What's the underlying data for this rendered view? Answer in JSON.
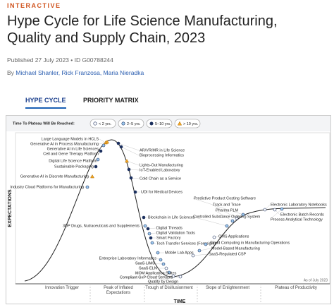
{
  "header": {
    "label": "INTERACTIVE",
    "title": "Hype Cycle for Life Science Manufacturing, Quality and Supply Chain, 2023",
    "meta": "Published 27 July 2023 • ID G00788244",
    "byline_prefix": "By",
    "authors": "Michael Shanler, Rick Franzosa, Maria Nieradka"
  },
  "tabs": [
    "HYPE CYCLE",
    "PRIORITY MATRIX"
  ],
  "legend": {
    "title": "Time To Plateau Will Be Reached:",
    "items": [
      "< 2 yrs.",
      "2–5 yrs.",
      "5–10 yrs.",
      "> 10 yrs."
    ]
  },
  "chart": {
    "y_axis": "EXPECTATIONS",
    "x_axis": "TIME",
    "as_of": "As of July 2023",
    "phases": [
      "Innovation Trigger",
      "Peak of Inflated Expectations",
      "Trough of Disillusionment",
      "Slope of Enlightenment",
      "Plateau of Productivity"
    ],
    "technologies": [
      "Large Language Models in HCLS",
      "Generative AI in Process Manufacturing",
      "Generative AI in Life Sciences",
      "Cell and Gene Therapy Platform",
      "Digital Life Science Platform",
      "Sustainable Packaging",
      "Generative AI in Discrete Manufacturing",
      "Industry Cloud Platforms for Manufacturing",
      "AR/VR/MR in Life Science",
      "Bioprocessing Informatics",
      "Lights-Out Manufacturing",
      "IoT-Enabled Laboratory",
      "Cold Chain as a Service",
      "UDI for Medical Devices",
      "Blockchain in Life Sciences",
      "3DP Drugs, Nutraceuticals and Supplements",
      "Digital Threads",
      "Digital Validation Tools",
      "Smart Factory",
      "Tech Transfer Services (Foresight)",
      "Mobile Lab Apps",
      "Enterprise Laboratory Informatics",
      "SaaS LIMS",
      "SaaS ELN",
      "MOM Application Suites",
      "Compliant GxP Cloud Services",
      "Quality by Design",
      "Predictive Product Costing Software",
      "Track and Trace",
      "Pharma PLM",
      "Controlled Substance Ordering System",
      "QMS Applications",
      "Cloud Computing in Manufacturing Operations",
      "Model-Based Manufacturing",
      "SaaS-Regulated CSP",
      "Electronic Laboratory Notebooks",
      "Electronic Batch Records",
      "Process Analytical Technology"
    ]
  }
}
